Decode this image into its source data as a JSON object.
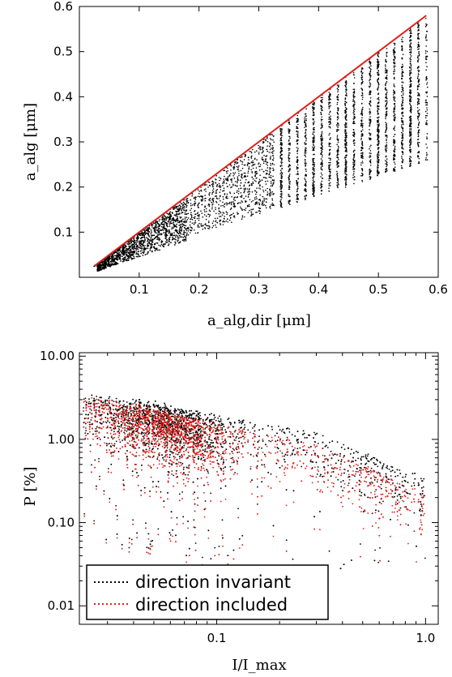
{
  "chart_data": [
    {
      "type": "scatter",
      "xlabel": "a_alg,dir [μm]",
      "ylabel": "a_alg [μm]",
      "xlim": [
        0.0,
        0.6
      ],
      "ylim": [
        0.0,
        0.6
      ],
      "x_ticks": [
        0.1,
        0.2,
        0.3,
        0.4,
        0.5,
        0.6
      ],
      "y_ticks": [
        0.1,
        0.2,
        0.3,
        0.4,
        0.5,
        0.6
      ],
      "x_tick_labels": [
        "0.1",
        "0.2",
        "0.3",
        "0.4",
        "0.5",
        "0.6"
      ],
      "y_tick_labels": [
        "0.1",
        "0.2",
        "0.3",
        "0.4",
        "0.5",
        "0.6"
      ],
      "grid": false,
      "point_color": "#000000",
      "line": {
        "color": "#e0201b",
        "x": [
          0.025,
          0.58
        ],
        "y": [
          0.025,
          0.58
        ]
      },
      "columns": [
        {
          "x": 0.05,
          "ymin": 0.025,
          "ymax": 0.05
        },
        {
          "x": 0.1,
          "ymin": 0.05,
          "ymax": 0.1
        },
        {
          "x": 0.15,
          "ymin": 0.08,
          "ymax": 0.15
        },
        {
          "x": 0.2,
          "ymin": 0.1,
          "ymax": 0.2
        },
        {
          "x": 0.25,
          "ymin": 0.12,
          "ymax": 0.25
        },
        {
          "x": 0.3,
          "ymin": 0.14,
          "ymax": 0.3
        },
        {
          "x": 0.35,
          "ymin": 0.17,
          "ymax": 0.34
        },
        {
          "x": 0.4,
          "ymin": 0.19,
          "ymax": 0.4
        },
        {
          "x": 0.45,
          "ymin": 0.21,
          "ymax": 0.44
        },
        {
          "x": 0.5,
          "ymin": 0.23,
          "ymax": 0.5
        },
        {
          "x": 0.55,
          "ymin": 0.24,
          "ymax": 0.55
        },
        {
          "x": 0.58,
          "ymin": 0.25,
          "ymax": 0.58
        }
      ]
    },
    {
      "type": "scatter",
      "xlabel": "I/I_max",
      "ylabel": "P [%]",
      "xscale": "log",
      "yscale": "log",
      "xlim": [
        0.022,
        1.15
      ],
      "ylim": [
        0.006,
        11
      ],
      "x_ticks": [
        0.1,
        1.0
      ],
      "y_ticks": [
        0.01,
        0.1,
        1.0,
        10.0
      ],
      "x_tick_labels": [
        "0.1",
        "1.0"
      ],
      "y_tick_labels": [
        "0.01",
        "0.10",
        "1.00",
        "10.00"
      ],
      "grid": false,
      "legend_position": "bottom-left",
      "series": [
        {
          "name": "direction invariant",
          "color": "#000000",
          "upper_envelope": {
            "x": [
              0.022,
              0.05,
              0.1,
              0.3,
              0.7,
              1.0
            ],
            "y": [
              3.5,
              2.9,
              2.0,
              1.2,
              0.5,
              0.35
            ]
          },
          "core": {
            "x": 0.055,
            "y": 1.3
          }
        },
        {
          "name": "direction included",
          "color": "#e0201b",
          "upper_envelope": {
            "x": [
              0.022,
              0.05,
              0.1,
              0.3,
              0.7,
              1.0
            ],
            "y": [
              3.3,
              2.5,
              1.6,
              0.85,
              0.35,
              0.22
            ]
          },
          "core": {
            "x": 0.055,
            "y": 1.2
          }
        }
      ]
    }
  ]
}
